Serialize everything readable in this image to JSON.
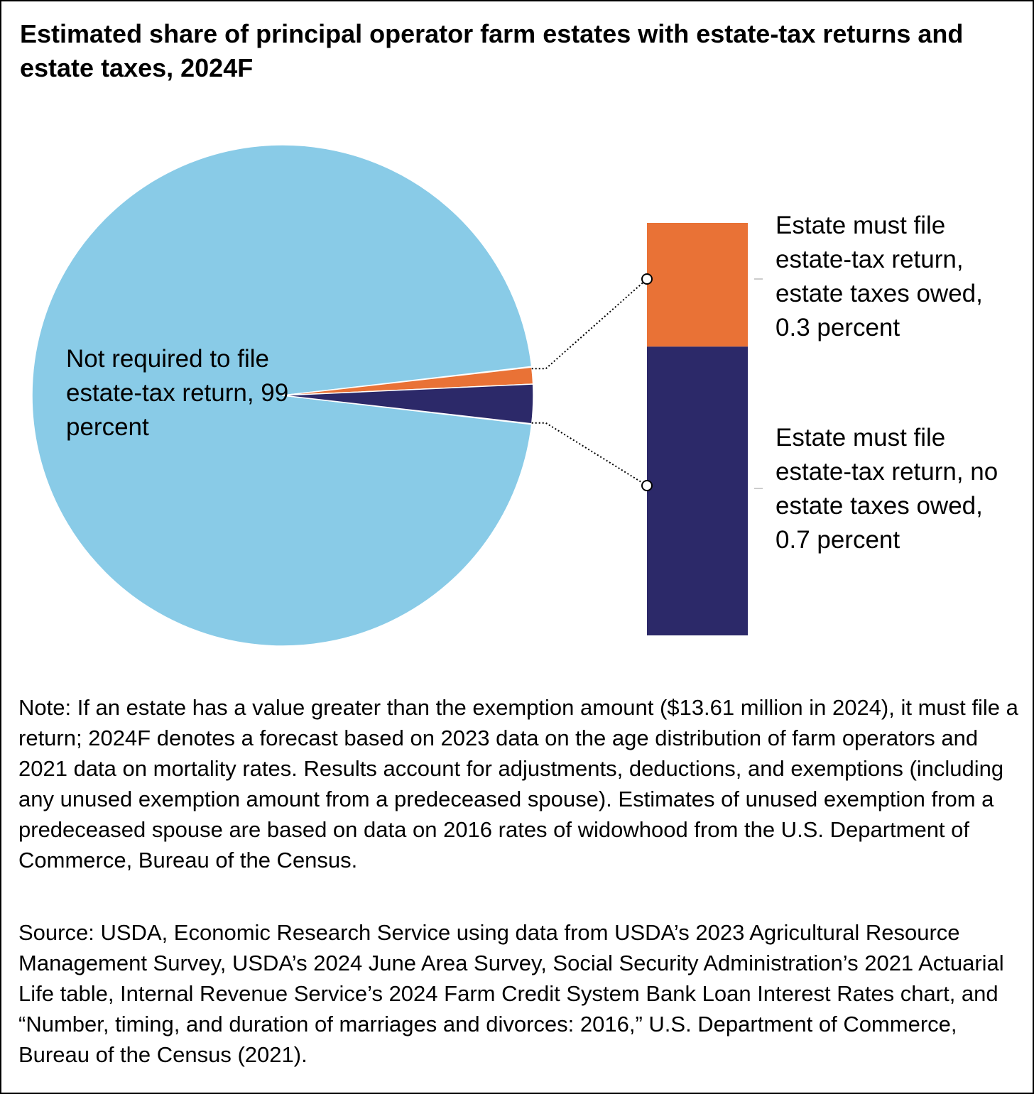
{
  "chart_data": {
    "type": "pie",
    "title": "Estimated share of principal operator farm estates with estate-tax returns and estate taxes, 2024F",
    "slices": [
      {
        "label": "Not required to file estate-tax return, 99 percent",
        "value": 99.0,
        "color": "#89cbe7"
      },
      {
        "label": "Estate must file estate-tax return, estate taxes owed, 0.3 percent",
        "value": 0.3,
        "color": "#e97236"
      },
      {
        "label": "Estate must file estate-tax return, no estate taxes owed, 0.7 percent",
        "value": 0.7,
        "color": "#2c2969"
      }
    ],
    "breakout_bar": {
      "segments": [
        {
          "label": "Estate must file estate-tax return, estate taxes owed, 0.3 percent",
          "value": 0.3,
          "color": "#e97236"
        },
        {
          "label": "Estate must file estate-tax return, no estate taxes owed, 0.7 percent",
          "value": 0.7,
          "color": "#2c2969"
        }
      ]
    }
  },
  "labels": {
    "pie": "Not required to file estate-tax return, 99 percent",
    "owed": "Estate must file estate-tax return, estate taxes owed, 0.3 percent",
    "none": "Estate must file estate-tax return, no estate taxes owed, 0.7 percent"
  },
  "note": "Note: If an estate has a value greater than the exemption amount ($13.61 million in 2024), it must file a return; 2024F denotes a forecast based on 2023 data on the age distribution of farm operators and 2021 data on mortality rates. Results account for adjustments, deductions, and exemptions (including any unused exemption amount from a predeceased spouse). Estimates of unused exemption from a predeceased spouse are based on data on 2016 rates of widowhood from the U.S. Department of Commerce, Bureau of the Census.",
  "source": "Source: USDA, Economic Research Service using data from USDA’s 2023 Agricultural Resource Management Survey, USDA’s 2024 June Area Survey, Social Security Administration’s 2021 Actuarial Life table, Internal Revenue Service’s 2024 Farm Credit System Bank Loan Interest Rates chart, and “Number, timing, and duration of marriages and divorces: 2016,” U.S. Department of Commerce, Bureau of the Census (2021)."
}
